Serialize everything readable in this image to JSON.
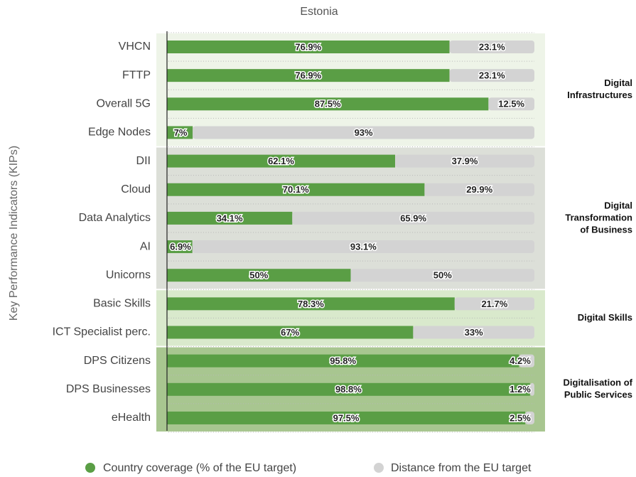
{
  "chart_data": {
    "type": "stacked-barh",
    "title": "Estonia",
    "y_label": "Key Performance Indicators (KIPs)",
    "categories": [
      "VHCN",
      "FTTP",
      "Overall 5G",
      "Edge Nodes",
      "DII",
      "Cloud",
      "Data Analytics",
      "AI",
      "Unicorns",
      "Basic Skills",
      "ICT Specialist perc.",
      "DPS Citizens",
      "DPS Businesses",
      "eHealth"
    ],
    "xlim": [
      0,
      100
    ],
    "series": [
      {
        "name": "Country coverage (% of the EU target)",
        "color": "#5a9e45",
        "values": [
          76.9,
          76.9,
          87.5,
          7,
          62.1,
          70.1,
          34.1,
          6.9,
          50,
          78.3,
          67,
          95.8,
          98.8,
          97.5
        ],
        "value_labels": [
          "76.9%",
          "76.9%",
          "87.5%",
          "7%",
          "62.1%",
          "70.1%",
          "34.1%",
          "6.9%",
          "50%",
          "78.3%",
          "67%",
          "95.8%",
          "98.8%",
          "97.5%"
        ]
      },
      {
        "name": "Distance from the EU target",
        "color": "#d3d3d3",
        "values": [
          23.1,
          23.1,
          12.5,
          93,
          37.9,
          29.9,
          65.9,
          93.1,
          50,
          21.7,
          33,
          4.2,
          1.2,
          2.5
        ],
        "value_labels": [
          "23.1%",
          "23.1%",
          "12.5%",
          "93%",
          "37.9%",
          "29.9%",
          "65.9%",
          "93.1%",
          "50%",
          "21.7%",
          "33%",
          "4.2%",
          "1.2%",
          "2.5%"
        ]
      }
    ],
    "groups": [
      {
        "label": [
          "Digital",
          "Infrastructures"
        ],
        "size": 4,
        "color": "#eef4e8"
      },
      {
        "label": [
          "Digital",
          "Transformation",
          "of Business"
        ],
        "size": 5,
        "color": "#dcdfd8"
      },
      {
        "label": [
          "Digital Skills"
        ],
        "size": 2,
        "color": "#d9e9cc"
      },
      {
        "label": [
          "Digitalisation of",
          "Public Services"
        ],
        "size": 3,
        "color": "#a8c690"
      }
    ]
  }
}
